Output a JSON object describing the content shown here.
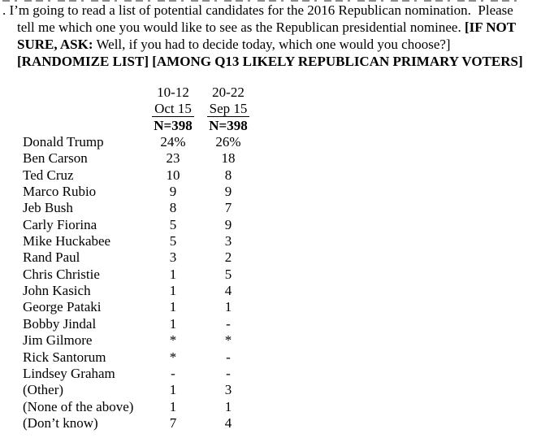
{
  "page": {
    "background_color": "#ffffff",
    "text_color": "#000000"
  },
  "question": {
    "line1": ". I’m going to read a list of potential candidates for the 2016 Republican nomination.  Please",
    "line2_normal": "tell me which one you would like to see as the Republican presidential nominee. ",
    "line2_bold": "[IF NOT",
    "line3_bold": "SURE, ASK:",
    "line3_normal": " Well, if you had to decide today, which one would you choose?]",
    "line4": "[RANDOMIZE LIST] [AMONG Q13 LIKELY REPUBLICAN PRIMARY VOTERS]"
  },
  "table": {
    "columns": [
      {
        "dates": "10-12",
        "month": "Oct 15",
        "n": "N=398"
      },
      {
        "dates": "20-22",
        "month": "Sep 15",
        "n": "N=398"
      }
    ],
    "rows": [
      {
        "name": "Donald Trump",
        "oct": "24%",
        "sep": "26%"
      },
      {
        "name": "Ben Carson",
        "oct": "23",
        "sep": "18"
      },
      {
        "name": "Ted Cruz",
        "oct": "10",
        "sep": "8"
      },
      {
        "name": "Marco Rubio",
        "oct": "9",
        "sep": "9"
      },
      {
        "name": "Jeb Bush",
        "oct": "8",
        "sep": "7"
      },
      {
        "name": "Carly Fiorina",
        "oct": "5",
        "sep": "9"
      },
      {
        "name": "Mike Huckabee",
        "oct": "5",
        "sep": "3"
      },
      {
        "name": "Rand Paul",
        "oct": "3",
        "sep": "2"
      },
      {
        "name": "Chris Christie",
        "oct": "1",
        "sep": "5"
      },
      {
        "name": "John Kasich",
        "oct": "1",
        "sep": "4"
      },
      {
        "name": "George Pataki",
        "oct": "1",
        "sep": "1"
      },
      {
        "name": "Bobby Jindal",
        "oct": "1",
        "sep": "-"
      },
      {
        "name": "Jim Gilmore",
        "oct": "*",
        "sep": "*"
      },
      {
        "name": "Rick Santorum",
        "oct": "*",
        "sep": "-"
      },
      {
        "name": "Lindsey Graham",
        "oct": "-",
        "sep": "-"
      },
      {
        "name": "(Other)",
        "oct": "1",
        "sep": "3"
      },
      {
        "name": "(None of the above)",
        "oct": "1",
        "sep": "1"
      },
      {
        "name": "(Don’t know)",
        "oct": "7",
        "sep": "4"
      }
    ]
  }
}
